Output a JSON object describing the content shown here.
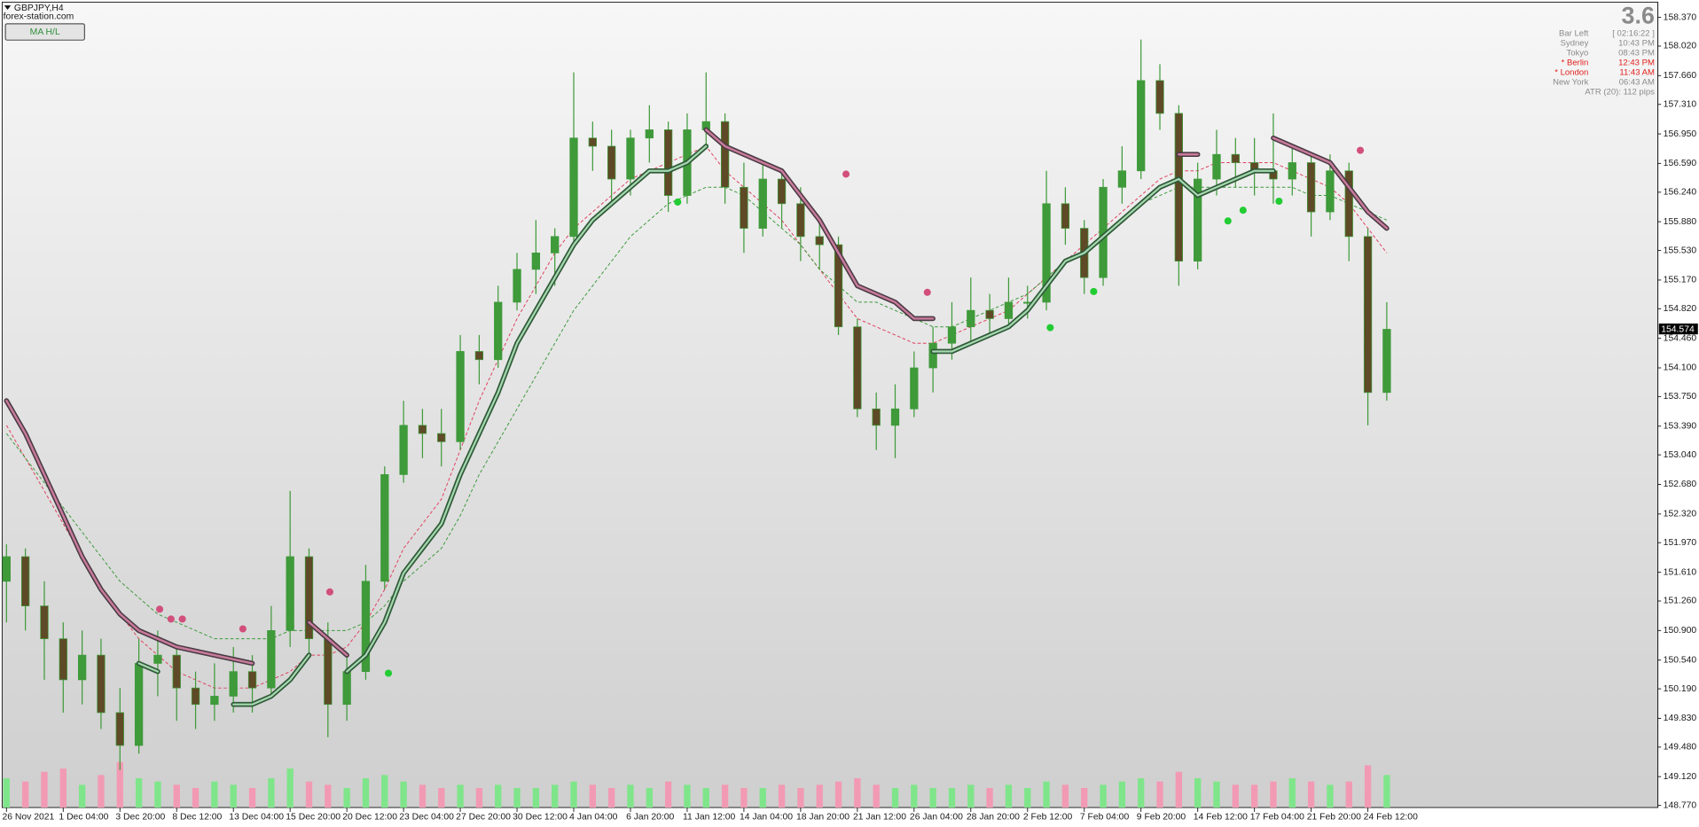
{
  "header": {
    "symbol": "GBPJPY,H4",
    "site": "forex-station.com",
    "button": "MA H/L"
  },
  "info_panel": {
    "spread": "3.6",
    "rows": [
      {
        "label": "Bar Left",
        "value": "[ 02:16:22 ]",
        "color": "#8a8a8a"
      },
      {
        "label": "Sydney",
        "value": "10:43 PM",
        "color": "#8a8a8a"
      },
      {
        "label": "Tokyo",
        "value": "08:43 PM",
        "color": "#8a8a8a"
      },
      {
        "label": "* Berlin",
        "value": "12:43 PM",
        "color": "#e0201c"
      },
      {
        "label": "* London",
        "value": "11:43 AM",
        "color": "#e0201c"
      },
      {
        "label": "New York",
        "value": "06:43 AM",
        "color": "#8a8a8a"
      }
    ],
    "atr": "ATR (20): 112 pips"
  },
  "chart_data": {
    "type": "candlestick",
    "categories": [
      "26 Nov 2021",
      null,
      null,
      "1 Dec 04:00",
      null,
      null,
      "3 Dec 20:00",
      null,
      null,
      "8 Dec 12:00",
      null,
      null,
      "13 Dec 04:00",
      null,
      null,
      "15 Dec 20:00",
      null,
      null,
      "20 Dec 12:00",
      null,
      null,
      "23 Dec 04:00",
      null,
      null,
      "27 Dec 20:00",
      null,
      null,
      "30 Dec 12:00",
      null,
      null,
      "4 Jan 04:00",
      null,
      null,
      "6 Jan 20:00",
      null,
      null,
      "11 Jan 12:00",
      null,
      null,
      "14 Jan 04:00",
      null,
      null,
      "18 Jan 20:00",
      null,
      null,
      "21 Jan 12:00",
      null,
      null,
      "26 Jan 04:00",
      null,
      null,
      "28 Jan 20:00",
      null,
      null,
      "2 Feb 12:00",
      null,
      null,
      "7 Feb 04:00",
      null,
      null,
      "9 Feb 20:00",
      null,
      null,
      "14 Feb 12:00",
      null,
      null,
      "17 Feb 04:00",
      null,
      null,
      "21 Feb 20:00",
      null,
      null,
      "24 Feb 12:00",
      null
    ],
    "open": [
      151.5,
      151.8,
      151.2,
      150.8,
      150.3,
      150.6,
      149.9,
      149.5,
      150.5,
      150.6,
      150.2,
      150.0,
      150.1,
      150.4,
      150.2,
      150.9,
      151.8,
      150.8,
      150.0,
      150.4,
      151.5,
      152.8,
      153.4,
      153.3,
      153.2,
      154.3,
      154.2,
      154.9,
      155.3,
      155.5,
      155.7,
      156.9,
      156.8,
      156.4,
      156.9,
      157.0,
      156.2,
      157.0,
      157.1,
      156.3,
      155.8,
      156.4,
      156.1,
      155.7,
      155.6,
      154.6,
      153.6,
      153.4,
      153.6,
      154.1,
      154.4,
      154.6,
      154.8,
      154.7,
      154.9,
      154.9,
      156.1,
      155.8,
      155.2,
      156.3,
      156.5,
      157.6,
      157.2,
      155.4,
      156.4,
      156.7,
      156.6,
      156.5,
      156.4,
      156.6,
      156.0,
      156.5,
      155.7,
      153.8
    ],
    "high": [
      151.95,
      151.9,
      151.5,
      151.0,
      150.9,
      150.8,
      150.2,
      150.8,
      150.9,
      150.7,
      150.4,
      150.5,
      150.7,
      150.6,
      151.2,
      152.6,
      151.9,
      151.0,
      150.6,
      151.7,
      152.9,
      153.7,
      153.6,
      153.6,
      154.5,
      154.5,
      155.1,
      155.5,
      155.9,
      155.8,
      157.7,
      157.1,
      157.0,
      157.0,
      157.3,
      157.1,
      157.2,
      157.7,
      157.2,
      156.6,
      156.6,
      156.5,
      156.3,
      155.9,
      155.7,
      154.7,
      153.8,
      153.9,
      154.3,
      154.6,
      154.9,
      155.2,
      155.0,
      155.2,
      155.1,
      156.5,
      156.3,
      155.9,
      156.4,
      156.8,
      158.1,
      157.8,
      157.3,
      156.6,
      157.0,
      156.9,
      156.9,
      157.2,
      156.8,
      156.7,
      156.7,
      156.6,
      155.8,
      154.9
    ],
    "low": [
      151.0,
      150.9,
      150.3,
      149.9,
      150.0,
      149.7,
      149.2,
      149.4,
      150.1,
      149.8,
      149.7,
      149.8,
      149.9,
      149.9,
      150.1,
      150.7,
      150.6,
      149.6,
      149.8,
      150.3,
      151.4,
      152.7,
      153.0,
      152.9,
      153.1,
      153.9,
      154.1,
      154.8,
      155.0,
      155.1,
      155.6,
      156.5,
      156.1,
      156.2,
      156.6,
      156.0,
      156.1,
      156.8,
      156.1,
      155.5,
      155.7,
      155.8,
      155.4,
      155.3,
      154.5,
      153.5,
      153.1,
      153.0,
      153.5,
      153.8,
      154.2,
      154.4,
      154.5,
      154.6,
      154.7,
      154.8,
      155.6,
      155.0,
      155.1,
      156.1,
      156.4,
      157.0,
      155.1,
      155.3,
      156.2,
      156.3,
      156.2,
      156.1,
      156.2,
      155.7,
      155.9,
      155.4,
      153.4,
      153.7
    ],
    "close": [
      151.8,
      151.2,
      150.8,
      150.3,
      150.6,
      149.9,
      149.5,
      150.5,
      150.6,
      150.2,
      150.0,
      150.1,
      150.4,
      150.2,
      150.9,
      151.8,
      150.8,
      150.0,
      150.4,
      151.5,
      152.8,
      153.4,
      153.3,
      153.2,
      154.3,
      154.2,
      154.9,
      155.3,
      155.5,
      155.7,
      156.9,
      156.8,
      156.4,
      156.9,
      157.0,
      156.2,
      157.0,
      157.1,
      156.3,
      155.8,
      156.4,
      156.1,
      155.7,
      155.6,
      154.6,
      153.6,
      153.4,
      153.6,
      154.1,
      154.4,
      154.6,
      154.8,
      154.7,
      154.9,
      154.9,
      156.1,
      155.8,
      155.2,
      156.3,
      156.5,
      157.6,
      157.2,
      155.4,
      156.4,
      156.7,
      156.6,
      156.5,
      156.4,
      156.6,
      156.0,
      156.5,
      155.7,
      153.8,
      154.57
    ],
    "up_color": "#3f9a3a",
    "down_color": "#5e4a26",
    "volume": [
      45,
      40,
      55,
      60,
      35,
      50,
      70,
      45,
      40,
      35,
      30,
      40,
      35,
      30,
      45,
      60,
      40,
      35,
      30,
      45,
      50,
      40,
      35,
      30,
      35,
      30,
      35,
      30,
      30,
      35,
      40,
      35,
      30,
      35,
      30,
      40,
      35,
      30,
      35,
      30,
      30,
      35,
      30,
      35,
      40,
      45,
      35,
      30,
      35,
      30,
      30,
      35,
      30,
      35,
      30,
      40,
      35,
      30,
      35,
      40,
      45,
      40,
      55,
      45,
      40,
      35,
      35,
      40,
      45,
      40,
      35,
      40,
      65,
      50
    ],
    "volume_ylim": [
      0,
      100
    ],
    "volume_up_color": "#7fe58a",
    "volume_down_color": "#f29ab4",
    "overlays": [
      {
        "color": "#e0405e",
        "width": 0.8,
        "dash": true,
        "values": [
          153.4,
          153.0,
          152.6,
          152.2,
          151.8,
          151.4,
          151.1,
          150.8,
          150.6,
          150.4,
          150.3,
          150.2,
          150.2,
          150.2,
          150.3,
          150.4,
          150.6,
          150.6,
          150.7,
          151.0,
          151.4,
          151.9,
          152.2,
          152.5,
          153.1,
          153.7,
          154.2,
          154.7,
          155.1,
          155.5,
          155.8,
          156.0,
          156.2,
          156.4,
          156.5,
          156.6,
          156.7,
          156.8,
          156.5,
          156.3,
          156.1,
          155.9,
          155.6,
          155.3,
          155.0,
          154.7,
          154.6,
          154.5,
          154.4,
          154.4,
          154.5,
          154.6,
          154.7,
          154.8,
          155.0,
          155.2,
          155.4,
          155.6,
          155.8,
          156.0,
          156.2,
          156.4,
          156.5,
          156.5,
          156.6,
          156.6,
          156.6,
          156.6,
          156.5,
          156.4,
          156.3,
          156.1,
          155.8,
          155.5
        ]
      },
      {
        "color": "#3c9a3c",
        "width": 0.8,
        "dash": true,
        "values": [
          153.3,
          153.0,
          152.7,
          152.4,
          152.1,
          151.8,
          151.5,
          151.3,
          151.1,
          151.0,
          150.9,
          150.8,
          150.8,
          150.8,
          150.8,
          150.9,
          150.9,
          150.9,
          150.9,
          151.0,
          151.2,
          151.5,
          151.7,
          151.9,
          152.3,
          152.8,
          153.2,
          153.6,
          154.0,
          154.4,
          154.8,
          155.1,
          155.4,
          155.7,
          155.9,
          156.1,
          156.2,
          156.3,
          156.3,
          156.2,
          156.0,
          155.8,
          155.6,
          155.3,
          155.1,
          154.9,
          154.9,
          154.8,
          154.7,
          154.6,
          154.6,
          154.7,
          154.8,
          154.9,
          155.0,
          155.2,
          155.4,
          155.5,
          155.7,
          155.9,
          156.1,
          156.2,
          156.3,
          156.3,
          156.3,
          156.3,
          156.3,
          156.3,
          156.3,
          156.2,
          156.2,
          156.1,
          156.0,
          155.9
        ]
      },
      {
        "color": "#c97b9c",
        "outline": "#4b3b44",
        "width": 2,
        "outline_width": 4.6,
        "values": [
          153.7,
          153.3,
          152.8,
          152.3,
          151.8,
          151.4,
          151.1,
          150.9,
          150.8,
          150.7,
          150.65,
          150.6,
          150.55,
          150.5,
          null,
          null,
          151.0,
          150.8,
          150.6,
          null,
          null,
          null,
          null,
          null,
          null,
          null,
          null,
          null,
          null,
          null,
          null,
          null,
          null,
          null,
          null,
          null,
          null,
          157.0,
          156.8,
          156.7,
          156.6,
          156.5,
          156.2,
          155.9,
          155.5,
          155.1,
          155.0,
          154.9,
          154.7,
          154.7,
          null,
          null,
          null,
          null,
          null,
          null,
          null,
          null,
          null,
          null,
          null,
          null,
          156.7,
          156.7,
          null,
          null,
          null,
          156.9,
          156.8,
          156.7,
          156.6,
          156.3,
          156.0,
          155.8
        ]
      },
      {
        "color": "#a6d8b0",
        "outline": "#2f5a38",
        "width": 1.8,
        "outline_width": 4.6,
        "values": [
          null,
          null,
          null,
          null,
          null,
          null,
          null,
          150.5,
          150.4,
          null,
          null,
          null,
          150.0,
          150.0,
          150.1,
          150.3,
          150.6,
          null,
          150.4,
          150.6,
          151.0,
          151.6,
          151.9,
          152.2,
          152.8,
          153.3,
          153.8,
          154.4,
          154.8,
          155.2,
          155.6,
          155.9,
          156.1,
          156.3,
          156.5,
          156.5,
          156.6,
          156.8,
          null,
          null,
          null,
          null,
          null,
          null,
          null,
          null,
          null,
          null,
          null,
          154.3,
          154.3,
          154.4,
          154.5,
          154.6,
          154.8,
          155.1,
          155.4,
          155.5,
          155.7,
          155.9,
          156.1,
          156.3,
          156.4,
          156.2,
          156.3,
          156.4,
          156.5,
          156.5,
          null,
          null,
          null,
          null,
          null,
          null
        ]
      }
    ],
    "signals": [
      {
        "color": "#d24f7c",
        "x": [
          8.1,
          8.7,
          9.3,
          12.5,
          17.1,
          44.4,
          48.7,
          71.6
        ],
        "values": [
          151.16,
          151.04,
          151.04,
          150.92,
          151.37,
          156.46,
          155.02,
          156.75
        ]
      },
      {
        "color": "#22cc33",
        "x": [
          20.2,
          35.5,
          55.2,
          57.5,
          64.6,
          65.4,
          67.3
        ],
        "values": [
          150.38,
          156.12,
          154.59,
          155.03,
          155.89,
          156.02,
          156.13
        ]
      }
    ],
    "ylim": [
      148.744,
      158.555
    ],
    "yticks": [
      {
        "value": 158.37,
        "label": "158.370"
      },
      {
        "value": 158.02,
        "label": "158.020"
      },
      {
        "value": 157.66,
        "label": "157.660"
      },
      {
        "value": 157.31,
        "label": "157.310"
      },
      {
        "value": 156.95,
        "label": "156.950"
      },
      {
        "value": 156.59,
        "label": "156.590"
      },
      {
        "value": 156.24,
        "label": "156.240"
      },
      {
        "value": 155.88,
        "label": "155.880"
      },
      {
        "value": 155.53,
        "label": "155.530"
      },
      {
        "value": 155.17,
        "label": "155.170"
      },
      {
        "value": 154.82,
        "label": "154.820"
      },
      {
        "value": 154.46,
        "label": "154.460"
      },
      {
        "value": 154.1,
        "label": "154.100"
      },
      {
        "value": 153.75,
        "label": "153.750"
      },
      {
        "value": 153.39,
        "label": "153.390"
      },
      {
        "value": 153.04,
        "label": "153.040"
      },
      {
        "value": 152.68,
        "label": "152.680"
      },
      {
        "value": 152.32,
        "label": "152.320"
      },
      {
        "value": 151.97,
        "label": "151.970"
      },
      {
        "value": 151.61,
        "label": "151.610"
      },
      {
        "value": 151.26,
        "label": "151.260"
      },
      {
        "value": 150.9,
        "label": "150.900"
      },
      {
        "value": 150.54,
        "label": "150.540"
      },
      {
        "value": 150.19,
        "label": "150.190"
      },
      {
        "value": 149.83,
        "label": "149.830"
      },
      {
        "value": 149.48,
        "label": "149.480"
      },
      {
        "value": 149.12,
        "label": "149.120"
      },
      {
        "value": 148.77,
        "label": "148.770"
      }
    ],
    "last_price": 154.574,
    "grid": false
  }
}
